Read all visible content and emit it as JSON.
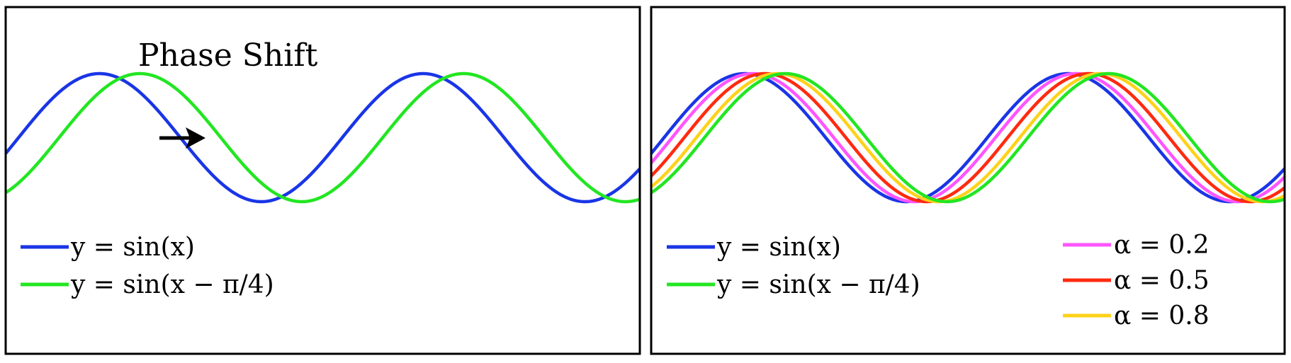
{
  "chart_data": [
    {
      "type": "line",
      "title": "Phase Shift",
      "xlabel": "",
      "ylabel": "",
      "xlim": [
        -0.25,
        12.06
      ],
      "ylim": [
        -1.05,
        1.05
      ],
      "grid": false,
      "legend": "bottom-left",
      "annotations": [
        {
          "type": "arrow",
          "label": "",
          "from": [
            2.73,
            -0.07
          ],
          "to": [
            3.6,
            -0.07
          ]
        }
      ],
      "series": [
        {
          "name": "y = sin(x)",
          "color": "#1a35e6",
          "function": "sin(x)",
          "phase": 0
        },
        {
          "name": "y = sin(x − π/4)",
          "color": "#22e622",
          "function": "sin(x - pi/4)",
          "phase": 0.7854
        }
      ]
    },
    {
      "type": "line",
      "title": "",
      "xlabel": "",
      "ylabel": "",
      "xlim": [
        -0.25,
        12.06
      ],
      "ylim": [
        -1.05,
        1.05
      ],
      "grid": false,
      "legend": "bottom",
      "series": [
        {
          "name": "y = sin(x)",
          "color": "#1a35e6",
          "function": "sin(x)",
          "phase": 0
        },
        {
          "name": "y = sin(x − π/4)",
          "color": "#22e622",
          "function": "sin(x - pi/4)",
          "phase": 0.7854
        },
        {
          "name": "α = 0.2",
          "color": "#ff55ff",
          "function": "sin(x - 0.2·π/4)",
          "phase": 0.1571
        },
        {
          "name": "α = 0.5",
          "color": "#ff2a10",
          "function": "sin(x - 0.5·π/4)",
          "phase": 0.3927
        },
        {
          "name": "α = 0.8",
          "color": "#ffd21a",
          "function": "sin(x - 0.8·π/4)",
          "phase": 0.6283
        }
      ]
    }
  ]
}
